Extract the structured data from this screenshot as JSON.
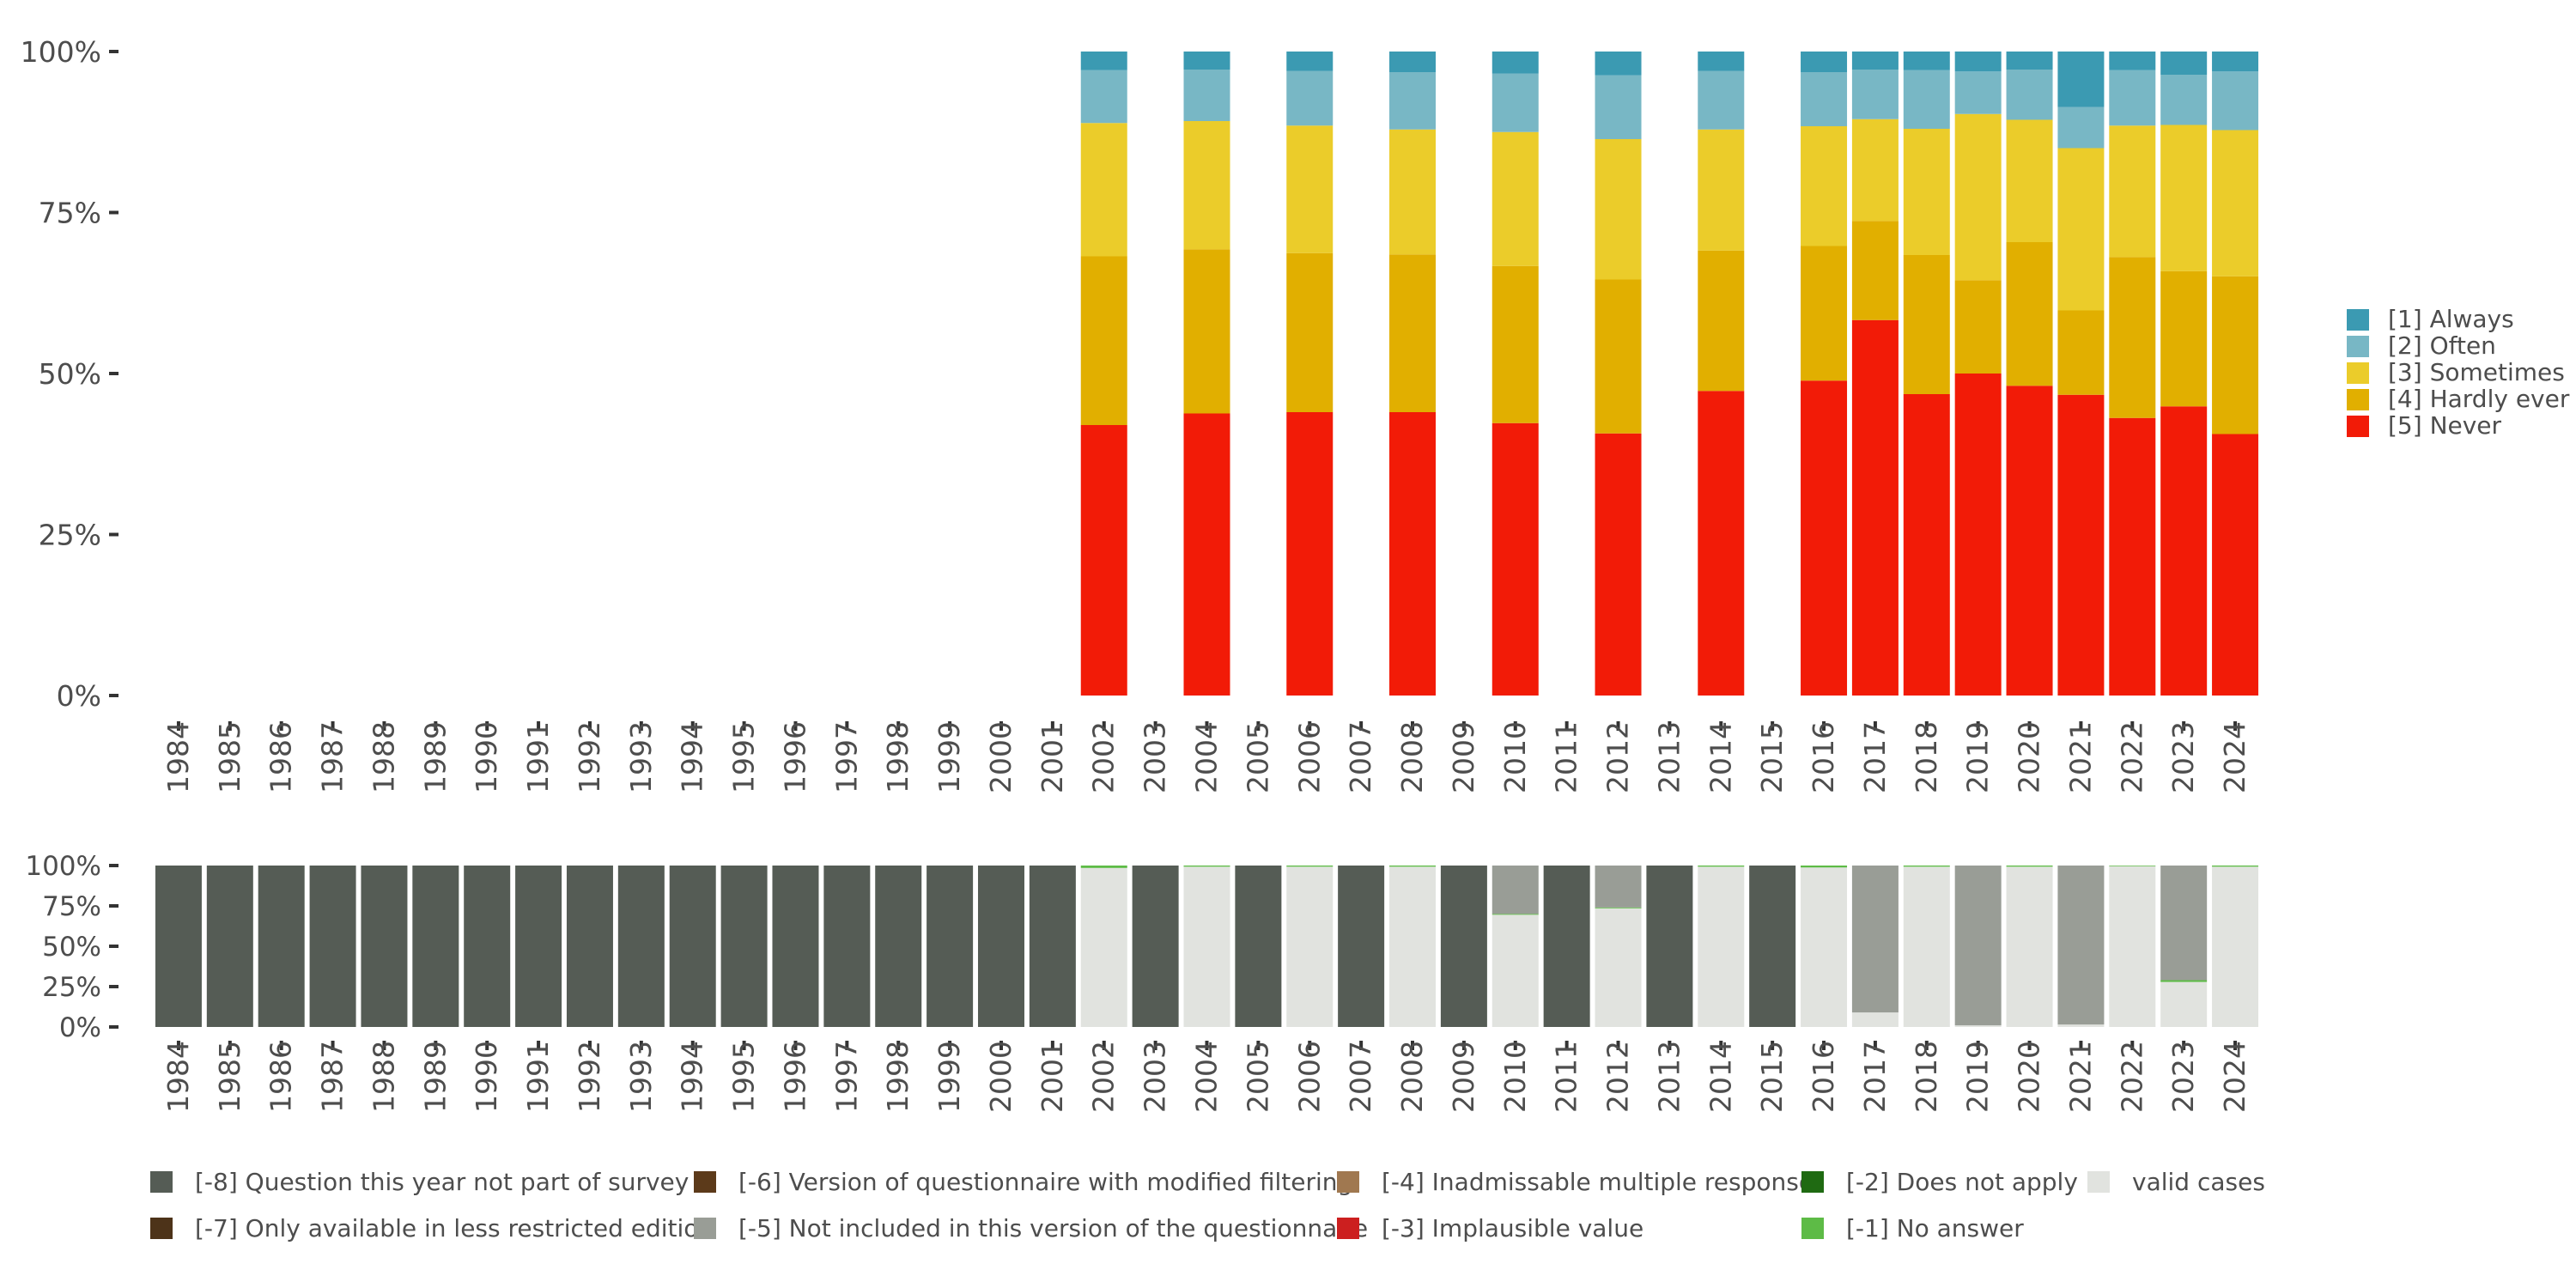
{
  "chart_data": [
    {
      "type": "bar",
      "stacked": "percent",
      "title": "",
      "xlabel": "",
      "ylabel": "",
      "ylim": [
        0,
        100
      ],
      "yticks": [
        "0%",
        "25%",
        "50%",
        "75%",
        "100%"
      ],
      "grid": false,
      "legend_position": "right",
      "categories": [
        "1984",
        "1985",
        "1986",
        "1987",
        "1988",
        "1989",
        "1990",
        "1991",
        "1992",
        "1993",
        "1994",
        "1995",
        "1996",
        "1997",
        "1998",
        "1999",
        "2000",
        "2001",
        "2002",
        "2003",
        "2004",
        "2005",
        "2006",
        "2007",
        "2008",
        "2009",
        "2010",
        "2011",
        "2012",
        "2013",
        "2014",
        "2015",
        "2016",
        "2017",
        "2018",
        "2019",
        "2020",
        "2021",
        "2022",
        "2023",
        "2024"
      ],
      "series": [
        {
          "name": "[5] Never",
          "color": "#f21b07",
          "values": [
            null,
            null,
            null,
            null,
            null,
            null,
            null,
            null,
            null,
            null,
            null,
            null,
            null,
            null,
            null,
            null,
            null,
            null,
            42.0,
            null,
            43.8,
            null,
            44.0,
            null,
            44.0,
            null,
            42.3,
            null,
            40.7,
            null,
            47.3,
            null,
            48.9,
            58.3,
            46.8,
            50.0,
            48.1,
            46.7,
            43.1,
            44.9,
            40.6
          ]
        },
        {
          "name": "[4] Hardly ever",
          "color": "#e1af00",
          "values": [
            null,
            null,
            null,
            null,
            null,
            null,
            null,
            null,
            null,
            null,
            null,
            null,
            null,
            null,
            null,
            null,
            null,
            null,
            26.2,
            null,
            25.5,
            null,
            24.7,
            null,
            24.5,
            null,
            24.4,
            null,
            23.9,
            null,
            21.8,
            null,
            20.9,
            15.4,
            21.6,
            14.5,
            22.3,
            13.1,
            25.0,
            21.0,
            24.5
          ]
        },
        {
          "name": "[3] Sometimes",
          "color": "#ebcc2a",
          "values": [
            null,
            null,
            null,
            null,
            null,
            null,
            null,
            null,
            null,
            null,
            null,
            null,
            null,
            null,
            null,
            null,
            null,
            null,
            20.7,
            null,
            19.9,
            null,
            19.8,
            null,
            19.4,
            null,
            20.8,
            null,
            21.8,
            null,
            18.8,
            null,
            18.6,
            15.8,
            19.6,
            25.8,
            19.0,
            25.2,
            20.4,
            22.7,
            22.7
          ]
        },
        {
          "name": "[2] Often",
          "color": "#78b7c5",
          "values": [
            null,
            null,
            null,
            null,
            null,
            null,
            null,
            null,
            null,
            null,
            null,
            null,
            null,
            null,
            null,
            null,
            null,
            null,
            8.2,
            null,
            8.0,
            null,
            8.5,
            null,
            8.9,
            null,
            9.1,
            null,
            9.9,
            null,
            9.1,
            null,
            8.4,
            7.7,
            9.1,
            6.6,
            7.8,
            6.4,
            8.6,
            7.8,
            9.1
          ]
        },
        {
          "name": "[1] Always",
          "color": "#3b9ab2",
          "values": [
            null,
            null,
            null,
            null,
            null,
            null,
            null,
            null,
            null,
            null,
            null,
            null,
            null,
            null,
            null,
            null,
            null,
            null,
            2.9,
            null,
            2.8,
            null,
            3.0,
            null,
            3.2,
            null,
            3.4,
            null,
            3.7,
            null,
            3.0,
            null,
            3.2,
            2.8,
            2.9,
            3.1,
            2.8,
            8.6,
            2.9,
            3.6,
            3.1
          ]
        }
      ]
    },
    {
      "type": "bar",
      "stacked": "percent",
      "title": "",
      "xlabel": "",
      "ylabel": "",
      "ylim": [
        0,
        100
      ],
      "yticks": [
        "0%",
        "25%",
        "50%",
        "75%",
        "100%"
      ],
      "grid": false,
      "legend_position": "bottom",
      "categories": [
        "1984",
        "1985",
        "1986",
        "1987",
        "1988",
        "1989",
        "1990",
        "1991",
        "1992",
        "1993",
        "1994",
        "1995",
        "1996",
        "1997",
        "1998",
        "1999",
        "2000",
        "2001",
        "2002",
        "2003",
        "2004",
        "2005",
        "2006",
        "2007",
        "2008",
        "2009",
        "2010",
        "2011",
        "2012",
        "2013",
        "2014",
        "2015",
        "2016",
        "2017",
        "2018",
        "2019",
        "2020",
        "2021",
        "2022",
        "2023",
        "2024"
      ],
      "series": [
        {
          "name": "valid cases",
          "color": "#e1e3df",
          "values": [
            0,
            0,
            0,
            0,
            0,
            0,
            0,
            0,
            0,
            0,
            0,
            0,
            0,
            0,
            0,
            0,
            0,
            0,
            98.5,
            0,
            99.3,
            0,
            99.3,
            0,
            99.3,
            0,
            69.5,
            0,
            73.5,
            0,
            99.3,
            0,
            98.8,
            9.0,
            99.3,
            1.0,
            99.3,
            1.5,
            99.6,
            27.9,
            99.3
          ]
        },
        {
          "name": "[-1] No answer",
          "color": "#5dbb46",
          "values": [
            0,
            0,
            0,
            0,
            0,
            0,
            0,
            0,
            0,
            0,
            0,
            0,
            0,
            0,
            0,
            0,
            0,
            0,
            1.5,
            0,
            0.7,
            0,
            0.7,
            0,
            0.7,
            0,
            0.5,
            0,
            0.5,
            0,
            0.7,
            0,
            1.2,
            0,
            0.7,
            0,
            0.7,
            0,
            0.4,
            1.1,
            0.7
          ]
        },
        {
          "name": "[-5] Not included in this version of the questionnaire",
          "color": "#999d96",
          "values": [
            0,
            0,
            0,
            0,
            0,
            0,
            0,
            0,
            0,
            0,
            0,
            0,
            0,
            0,
            0,
            0,
            0,
            0,
            0,
            0,
            0,
            0,
            0,
            0,
            0,
            0,
            30.0,
            0,
            26.0,
            0,
            0,
            0,
            0,
            91.0,
            0,
            99.0,
            0,
            98.5,
            0,
            71.0,
            0
          ]
        },
        {
          "name": "[-8] Question this year not part of survey",
          "color": "#555c55",
          "values": [
            100,
            100,
            100,
            100,
            100,
            100,
            100,
            100,
            100,
            100,
            100,
            100,
            100,
            100,
            100,
            100,
            100,
            100,
            0,
            100,
            0,
            100,
            0,
            100,
            0,
            100,
            0,
            100,
            0,
            100,
            0,
            100,
            0,
            0,
            0,
            0,
            0,
            0,
            0,
            0,
            0
          ]
        }
      ]
    }
  ],
  "bottom_legend": [
    {
      "label": "[-8] Question this year not part of survey",
      "color": "#555c55"
    },
    {
      "label": "[-7] Only available in less restricted edition",
      "color": "#4d3319"
    },
    {
      "label": "[-6] Version of questionnaire with modified filtering",
      "color": "#5c3a1a"
    },
    {
      "label": "[-5] Not included in this version of the questionnaire",
      "color": "#999d96"
    },
    {
      "label": "[-4] Inadmissable multiple response",
      "color": "#a07850"
    },
    {
      "label": "[-3] Implausible value",
      "color": "#cc1f1f"
    },
    {
      "label": "[-2] Does not apply",
      "color": "#1f6a12"
    },
    {
      "label": "[-1] No answer",
      "color": "#5dbb46"
    },
    {
      "label": "valid cases",
      "color": "#e1e3df"
    }
  ]
}
